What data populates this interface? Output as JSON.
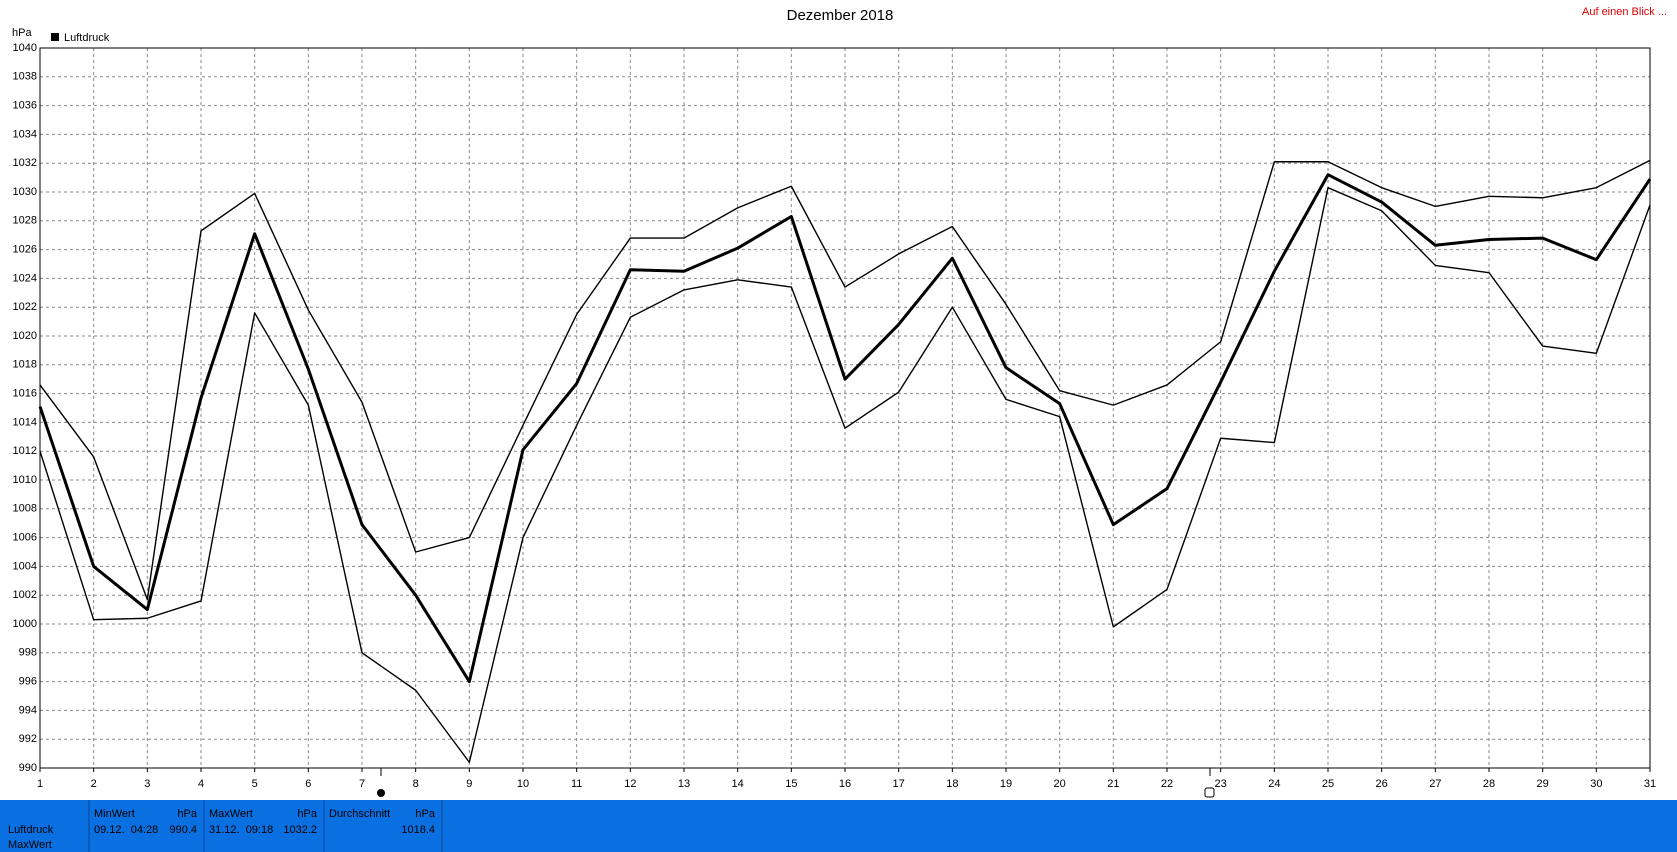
{
  "link": "Auf einen Blick ...",
  "chart_data": {
    "type": "line",
    "title": "Dezember 2018",
    "ylabel": "hPa",
    "grid": true,
    "x": [
      1,
      2,
      3,
      4,
      5,
      6,
      7,
      8,
      9,
      10,
      11,
      12,
      13,
      14,
      15,
      16,
      17,
      18,
      19,
      20,
      21,
      22,
      23,
      24,
      25,
      26,
      27,
      28,
      29,
      30,
      31
    ],
    "xlim": [
      1,
      31
    ],
    "xticks": [
      1,
      2,
      3,
      4,
      5,
      6,
      7,
      8,
      9,
      10,
      11,
      12,
      13,
      14,
      15,
      16,
      17,
      18,
      19,
      20,
      21,
      22,
      23,
      24,
      25,
      26,
      27,
      28,
      29,
      30,
      31
    ],
    "ylim": [
      990,
      1040
    ],
    "yticks": [
      990,
      992,
      994,
      996,
      998,
      1000,
      1002,
      1004,
      1006,
      1008,
      1010,
      1012,
      1014,
      1016,
      1018,
      1020,
      1022,
      1024,
      1026,
      1028,
      1030,
      1032,
      1034,
      1036,
      1038,
      1040
    ],
    "series": [
      {
        "name": "Luftdruck",
        "color": "#000000",
        "width": 3,
        "values": [
          1015.1,
          1004.0,
          1001.0,
          1015.7,
          1027.1,
          1017.7,
          1006.9,
          1002.0,
          996.0,
          1012.1,
          1016.7,
          1024.6,
          1024.5,
          1026.1,
          1028.3,
          1017.0,
          1020.8,
          1025.4,
          1017.8,
          1015.3,
          1006.9,
          1009.4,
          1016.8,
          1024.5,
          1031.2,
          1029.3,
          1026.3,
          1026.7,
          1026.8,
          1025.3,
          1030.9
        ]
      },
      {
        "color": "#000000",
        "width": 1.4,
        "values": [
          1016.6,
          1011.6,
          1001.7,
          1027.3,
          1029.9,
          1021.8,
          1015.4,
          1005.0,
          1006.0,
          1013.8,
          1021.5,
          1026.8,
          1026.8,
          1028.9,
          1030.4,
          1023.4,
          1025.7,
          1027.6,
          1022.2,
          1016.2,
          1015.2,
          1016.6,
          1019.6,
          1032.1,
          1032.1,
          1030.3,
          1029.0,
          1029.7,
          1029.6,
          1030.3,
          1032.2
        ]
      },
      {
        "color": "#000000",
        "width": 1.4,
        "values": [
          1012.0,
          1000.3,
          1000.4,
          1001.6,
          1021.6,
          1015.2,
          998.0,
          995.4,
          990.4,
          1006.0,
          1013.8,
          1021.3,
          1023.2,
          1023.9,
          1023.4,
          1013.6,
          1016.1,
          1022.0,
          1015.6,
          1014.4,
          999.8,
          1002.4,
          1012.9,
          1012.6,
          1030.3,
          1028.7,
          1024.9,
          1024.4,
          1019.3,
          1018.8,
          1029.1
        ]
      }
    ]
  },
  "summary": {
    "row_labels": [
      "Luftdruck",
      "MaxWert"
    ],
    "columns": [
      {
        "header": "MinWert",
        "unit": "hPa",
        "time": "09.12.  04:28",
        "value": 990.4
      },
      {
        "header": "MaxWert",
        "unit": "hPa",
        "time": "31.12.  09:18",
        "value": 1032.2
      },
      {
        "header": "Durchschnitt",
        "unit": "hPa",
        "value": 1018.4
      }
    ]
  }
}
